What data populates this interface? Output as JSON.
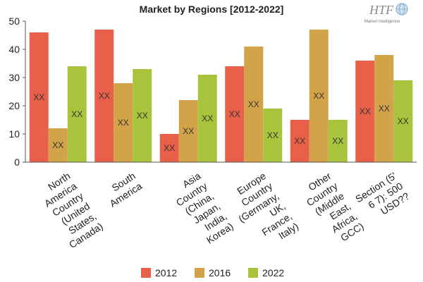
{
  "chart_data": {
    "type": "bar",
    "title": "Market by Regions [2012-2022]",
    "xlabel": "",
    "ylabel": "",
    "ylim": [
      0,
      50
    ],
    "yticks": [
      0,
      10,
      20,
      30,
      40,
      50
    ],
    "grid": false,
    "legend_position": "bottom",
    "categories": [
      "North America Country (United States, Canada)",
      "South America",
      "Asia Country (China, Japan, India, Korea)",
      "Europe Country (Germany, UK, France, Italy)",
      "Other Country (Middle East, Africa, GCC)",
      "Section (5 6 7): 500 USD??"
    ],
    "category_label_lines": [
      [
        "North",
        "America",
        "Country",
        "(United",
        "States,",
        "Canada)"
      ],
      [
        "South",
        "America"
      ],
      [
        "Asia",
        "Country",
        "(China,",
        "Japan,",
        "India,",
        "Korea)"
      ],
      [
        "Europe",
        "Country",
        "(Germany,",
        "UK,",
        "France,",
        "Italy)"
      ],
      [
        "Other",
        "Country",
        "(Middle",
        "East,",
        "Africa,",
        "GCC)"
      ],
      [
        "Section (5'",
        "6 7): 500",
        "USD??"
      ]
    ],
    "series": [
      {
        "name": "2012",
        "color": "#e8604a",
        "values": [
          46,
          47,
          10,
          34,
          15,
          36
        ]
      },
      {
        "name": "2016",
        "color": "#d2a348",
        "values": [
          12,
          28,
          22,
          41,
          47,
          38
        ]
      },
      {
        "name": "2022",
        "color": "#a7c43c",
        "values": [
          34,
          33,
          31,
          19,
          15,
          29
        ]
      }
    ],
    "data_label": "XX"
  },
  "logo": {
    "text": "HTF",
    "subtext": "Market Intelligence",
    "icon": "globe-icon"
  }
}
